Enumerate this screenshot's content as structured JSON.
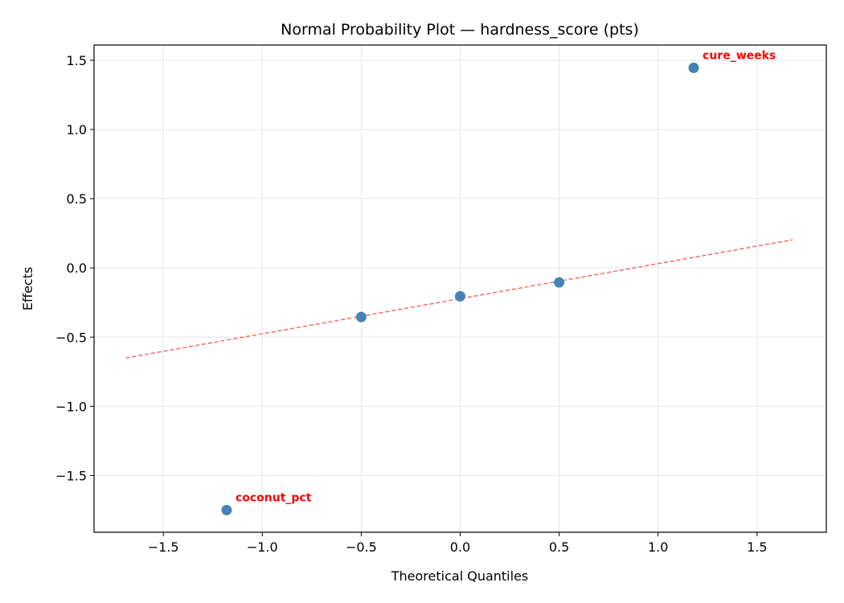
{
  "chart_data": {
    "type": "scatter",
    "title": "Normal Probability Plot — hardness_score (pts)",
    "xlabel": "Theoretical Quantiles",
    "ylabel": "Effects",
    "xlim": [
      -1.85,
      1.85
    ],
    "ylim": [
      -1.91,
      1.61
    ],
    "xticks": [
      -1.5,
      -1.0,
      -0.5,
      0.0,
      0.5,
      1.0,
      1.5
    ],
    "xtick_labels": [
      "−1.5",
      "−1.0",
      "−0.5",
      "0.0",
      "0.5",
      "1.0",
      "1.5"
    ],
    "yticks": [
      -1.5,
      -1.0,
      -0.5,
      0.0,
      0.5,
      1.0,
      1.5
    ],
    "ytick_labels": [
      "−1.5",
      "−1.0",
      "−0.5",
      "0.0",
      "0.5",
      "1.0",
      "1.5"
    ],
    "grid": true,
    "points": [
      {
        "x": -1.18,
        "y": -1.75,
        "label": "coconut_pct"
      },
      {
        "x": -0.5,
        "y": -0.355,
        "label": ""
      },
      {
        "x": 0.0,
        "y": -0.205,
        "label": ""
      },
      {
        "x": 0.5,
        "y": -0.105,
        "label": ""
      },
      {
        "x": 1.18,
        "y": 1.445,
        "label": "cure_weeks"
      }
    ],
    "reference_line": {
      "x": [
        -1.69,
        1.68
      ],
      "y": [
        -0.651,
        0.203
      ],
      "style": "dashed"
    },
    "colors": {
      "points": "#4682b4",
      "line": "#ff6666",
      "annotations": "#ff0000",
      "grid": "#e5e5e5"
    }
  }
}
